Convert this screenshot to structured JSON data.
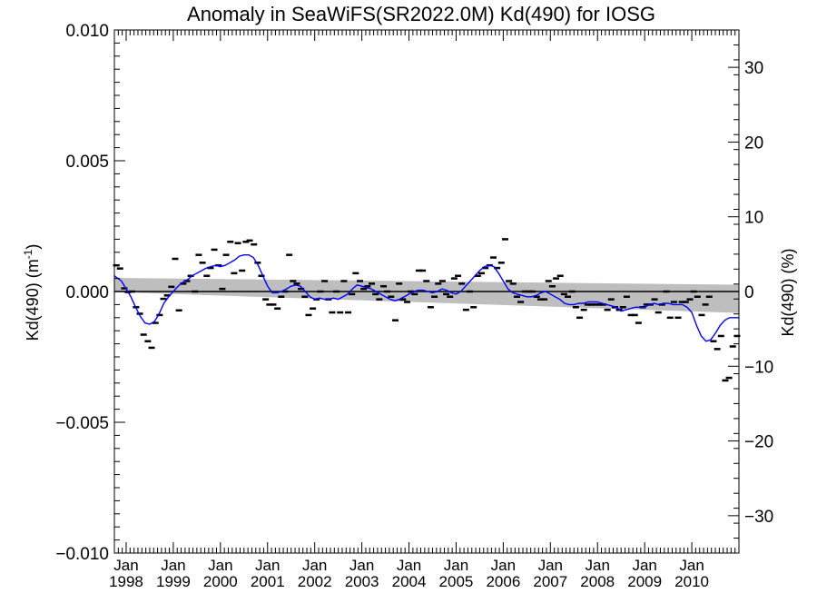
{
  "chart_data": {
    "type": "line",
    "title": "Anomaly in SeaWiFS(SR2022.0M) Kd(490) for IOSG",
    "ylabel_left_main": "Kd(490) (m",
    "ylabel_left_exp": "-1",
    "ylabel_left_close": ")",
    "ylabel_right": "Kd(490) (%)",
    "xlim": [
      1997.75,
      2011.0
    ],
    "ylim": [
      -0.01,
      0.01
    ],
    "ylim_right": [
      -35,
      35
    ],
    "y_ticks": [
      "0.010",
      "0.005",
      "0.000",
      "−0.005",
      "−0.010"
    ],
    "y_tick_values": [
      0.01,
      0.005,
      0.0,
      -0.005,
      -0.01
    ],
    "y_ticks_right": [
      "30",
      "20",
      "10",
      "0",
      "−10",
      "−20",
      "−30"
    ],
    "y_tick_values_right": [
      30,
      20,
      10,
      0,
      -10,
      -20,
      -30
    ],
    "x_month_label": "Jan",
    "x_years": [
      "1998",
      "1999",
      "2000",
      "2001",
      "2002",
      "2003",
      "2004",
      "2005",
      "2006",
      "2007",
      "2008",
      "2009",
      "2010"
    ],
    "x_year_values": [
      1998.0,
      1999.0,
      2000.0,
      2001.0,
      2002.0,
      2003.0,
      2004.0,
      2005.0,
      2006.0,
      2007.0,
      2008.0,
      2009.0,
      2010.0
    ],
    "zero_line": 0.0,
    "trend_band": {
      "x": [
        1997.75,
        2011.0
      ],
      "upper": [
        0.00052,
        0.00026
      ],
      "lower": [
        -2e-05,
        -0.00082
      ]
    },
    "colors": {
      "smoothed": "#0000ff",
      "monthly": "#000000",
      "band": "#bebebe",
      "zero_line": "#000000"
    },
    "monthly_points": [
      [
        1997.79,
        0.001
      ],
      [
        1997.87,
        0.00088
      ],
      [
        1997.96,
        0.00012
      ],
      [
        1998.04,
        -2e-05
      ],
      [
        1998.12,
        0.0
      ],
      [
        1998.21,
        -0.0006
      ],
      [
        1998.29,
        -0.00085
      ],
      [
        1998.37,
        -0.00165
      ],
      [
        1998.46,
        -0.0019
      ],
      [
        1998.54,
        -0.00215
      ],
      [
        1998.62,
        -0.0012
      ],
      [
        1998.71,
        -0.0009
      ],
      [
        1998.79,
        -0.00028
      ],
      [
        1998.87,
        -0.00015
      ],
      [
        1998.96,
        0.00018
      ],
      [
        1999.04,
        0.00125
      ],
      [
        1999.12,
        -0.00072
      ],
      [
        1999.21,
        0.0003
      ],
      [
        1999.29,
        0.0004
      ],
      [
        1999.37,
        0.0006
      ],
      [
        1999.46,
        0.0
      ],
      [
        1999.54,
        0.0014
      ],
      [
        1999.62,
        0.0011
      ],
      [
        1999.71,
        0.0006
      ],
      [
        1999.79,
        0.0009
      ],
      [
        1999.87,
        0.0016
      ],
      [
        1999.96,
        0.001
      ],
      [
        2000.04,
        0.0001
      ],
      [
        2000.12,
        0.0014
      ],
      [
        2000.21,
        0.0019
      ],
      [
        2000.29,
        0.0007
      ],
      [
        2000.37,
        0.00185
      ],
      [
        2000.46,
        0.0008
      ],
      [
        2000.54,
        0.0019
      ],
      [
        2000.62,
        0.00195
      ],
      [
        2000.71,
        0.0018
      ],
      [
        2000.79,
        0.0011
      ],
      [
        2000.87,
        0.0006
      ],
      [
        2000.96,
        -0.0003
      ],
      [
        2001.04,
        -0.0005
      ],
      [
        2001.12,
        -0.0005
      ],
      [
        2001.21,
        -0.00065
      ],
      [
        2001.29,
        -0.0002
      ],
      [
        2001.37,
        0.0
      ],
      [
        2001.46,
        0.0014
      ],
      [
        2001.54,
        0.0004
      ],
      [
        2001.62,
        0.0003
      ],
      [
        2001.71,
        0.0001
      ],
      [
        2001.79,
        -0.0002
      ],
      [
        2001.87,
        -0.0009
      ],
      [
        2001.96,
        -0.00065
      ],
      [
        2002.04,
        -0.0003
      ],
      [
        2002.12,
        0.0
      ],
      [
        2002.21,
        0.0004
      ],
      [
        2002.29,
        -0.0003
      ],
      [
        2002.37,
        -0.0008
      ],
      [
        2002.46,
        0.0
      ],
      [
        2002.54,
        -0.0008
      ],
      [
        2002.62,
        0.0004
      ],
      [
        2002.71,
        -0.0008
      ],
      [
        2002.79,
        -0.0001
      ],
      [
        2002.87,
        0.0007
      ],
      [
        2002.96,
        0.0004
      ],
      [
        2003.04,
        0.0001
      ],
      [
        2003.12,
        0.0002
      ],
      [
        2003.21,
        0.0003
      ],
      [
        2003.29,
        -0.0001
      ],
      [
        2003.37,
        -0.0003
      ],
      [
        2003.46,
        0.0002
      ],
      [
        2003.54,
        0.0
      ],
      [
        2003.62,
        -0.0002
      ],
      [
        2003.71,
        -0.0011
      ],
      [
        2003.79,
        0.0003
      ],
      [
        2003.87,
        -0.0003
      ],
      [
        2003.96,
        -0.0004
      ],
      [
        2004.04,
        0.0
      ],
      [
        2004.12,
        -0.0001
      ],
      [
        2004.21,
        0.0008
      ],
      [
        2004.29,
        0.0008
      ],
      [
        2004.37,
        0.0004
      ],
      [
        2004.46,
        -0.0006
      ],
      [
        2004.54,
        -0.0002
      ],
      [
        2004.62,
        0.0003
      ],
      [
        2004.71,
        0.0004
      ],
      [
        2004.79,
        -0.0001
      ],
      [
        2004.87,
        -0.0002
      ],
      [
        2004.96,
        0.0005
      ],
      [
        2005.04,
        0.0006
      ],
      [
        2005.12,
        0.0003
      ],
      [
        2005.21,
        -0.0007
      ],
      [
        2005.29,
        0.0
      ],
      [
        2005.37,
        -0.0006
      ],
      [
        2005.46,
        0.0006
      ],
      [
        2005.54,
        0.0007
      ],
      [
        2005.62,
        0.0009
      ],
      [
        2005.71,
        0.001
      ],
      [
        2005.79,
        0.0013
      ],
      [
        2005.87,
        0.0009
      ],
      [
        2005.96,
        0.0011
      ],
      [
        2006.04,
        0.002
      ],
      [
        2006.12,
        0.0004
      ],
      [
        2006.21,
        0.0003
      ],
      [
        2006.29,
        -0.0002
      ],
      [
        2006.37,
        -0.0004
      ],
      [
        2006.46,
        0.0
      ],
      [
        2006.54,
        0.0
      ],
      [
        2006.62,
        0.0
      ],
      [
        2006.71,
        -0.0002
      ],
      [
        2006.79,
        -0.0003
      ],
      [
        2006.87,
        -0.0003
      ],
      [
        2006.96,
        0.0004
      ],
      [
        2007.04,
        0.0002
      ],
      [
        2007.12,
        0.0005
      ],
      [
        2007.21,
        0.0006
      ],
      [
        2007.29,
        -0.0001
      ],
      [
        2007.37,
        -0.0002
      ],
      [
        2007.46,
        0.0
      ],
      [
        2007.54,
        -0.0006
      ],
      [
        2007.62,
        -0.001
      ],
      [
        2007.71,
        -0.0007
      ],
      [
        2007.79,
        -0.0005
      ],
      [
        2007.87,
        -0.0005
      ],
      [
        2007.96,
        -0.0005
      ],
      [
        2008.04,
        -0.0005
      ],
      [
        2008.12,
        -0.0005
      ],
      [
        2008.21,
        -0.0007
      ],
      [
        2008.29,
        -0.0003
      ],
      [
        2008.37,
        -0.0006
      ],
      [
        2008.46,
        -0.0007
      ],
      [
        2008.54,
        -0.0006
      ],
      [
        2008.62,
        -0.0002
      ],
      [
        2008.71,
        -0.0009
      ],
      [
        2008.79,
        -0.0009
      ],
      [
        2008.87,
        -0.0012
      ],
      [
        2008.96,
        -0.0006
      ],
      [
        2009.04,
        -0.0005
      ],
      [
        2009.12,
        -0.0005
      ],
      [
        2009.21,
        -0.0003
      ],
      [
        2009.29,
        -0.0008
      ],
      [
        2009.37,
        -0.0005
      ],
      [
        2009.46,
        0.0
      ],
      [
        2009.54,
        -0.001
      ],
      [
        2009.62,
        -0.0004
      ],
      [
        2009.71,
        -0.001
      ],
      [
        2009.79,
        -0.0004
      ],
      [
        2009.87,
        -0.0004
      ],
      [
        2009.96,
        -0.0003
      ],
      [
        2010.04,
        0.0
      ],
      [
        2010.12,
        -0.0002
      ],
      [
        2010.21,
        -0.0009
      ],
      [
        2010.29,
        -0.0005
      ],
      [
        2010.37,
        -0.0002
      ],
      [
        2010.46,
        -0.0019
      ],
      [
        2010.54,
        -0.0022
      ],
      [
        2010.62,
        -0.0017
      ],
      [
        2010.71,
        -0.0034
      ],
      [
        2010.79,
        -0.0033
      ],
      [
        2010.87,
        -0.0021
      ],
      [
        2010.96,
        -0.0017
      ]
    ],
    "smoothed_line": {
      "x": [
        1997.75,
        1997.9,
        1998.0,
        1998.1,
        1998.2,
        1998.3,
        1998.4,
        1998.5,
        1998.6,
        1998.7,
        1998.8,
        1998.9,
        1999.0,
        1999.1,
        1999.2,
        1999.3,
        1999.4,
        1999.5,
        1999.6,
        1999.7,
        1999.8,
        1999.9,
        2000.0,
        2000.1,
        2000.2,
        2000.3,
        2000.4,
        2000.5,
        2000.6,
        2000.7,
        2000.8,
        2000.9,
        2001.0,
        2001.1,
        2001.2,
        2001.3,
        2001.4,
        2001.5,
        2001.6,
        2001.7,
        2001.8,
        2001.9,
        2002.0,
        2002.1,
        2002.2,
        2002.3,
        2002.4,
        2002.5,
        2002.6,
        2002.7,
        2002.8,
        2002.9,
        2003.0,
        2003.1,
        2003.2,
        2003.3,
        2003.4,
        2003.5,
        2003.6,
        2003.7,
        2003.8,
        2003.9,
        2004.0,
        2004.1,
        2004.2,
        2004.3,
        2004.4,
        2004.5,
        2004.6,
        2004.7,
        2004.8,
        2004.9,
        2005.0,
        2005.1,
        2005.2,
        2005.3,
        2005.4,
        2005.5,
        2005.6,
        2005.7,
        2005.8,
        2005.9,
        2006.0,
        2006.1,
        2006.2,
        2006.3,
        2006.4,
        2006.5,
        2006.6,
        2006.7,
        2006.8,
        2006.9,
        2007.0,
        2007.1,
        2007.2,
        2007.3,
        2007.4,
        2007.5,
        2007.6,
        2007.7,
        2007.8,
        2007.9,
        2008.0,
        2008.1,
        2008.2,
        2008.3,
        2008.4,
        2008.5,
        2008.6,
        2008.7,
        2008.8,
        2008.9,
        2009.0,
        2009.1,
        2009.2,
        2009.3,
        2009.4,
        2009.5,
        2009.6,
        2009.7,
        2009.8,
        2009.9,
        2010.0,
        2010.1,
        2010.2,
        2010.3,
        2010.4,
        2010.5,
        2010.6,
        2010.7,
        2010.8,
        2010.9,
        2011.0
      ],
      "y": [
        0.0006,
        0.0004,
        0.0001,
        -0.0002,
        -0.0006,
        -0.00095,
        -0.0012,
        -0.00125,
        -0.00115,
        -0.00085,
        -0.00045,
        -0.0002,
        0.0,
        0.0002,
        0.00035,
        0.00045,
        0.0006,
        0.0007,
        0.0008,
        0.0009,
        0.00095,
        0.001,
        0.00095,
        0.001,
        0.0011,
        0.0012,
        0.00135,
        0.0014,
        0.0014,
        0.0013,
        0.001,
        0.0006,
        0.0002,
        -5e-05,
        -5e-05,
        0.0,
        0.0001,
        0.0002,
        0.00025,
        0.0002,
        0.0,
        -0.0002,
        -0.0003,
        -0.00025,
        -0.0003,
        -0.0003,
        -0.00025,
        -0.0003,
        -0.0002,
        -0.0001,
        0.0001,
        0.00025,
        0.0002,
        0.00015,
        0.0001,
        0.0,
        -0.0001,
        -0.0002,
        -0.0003,
        -0.00035,
        -0.0003,
        -0.0002,
        -0.0001,
        0.0,
        5e-05,
        5e-05,
        0.0,
        -5e-05,
        0.0,
        0.0001,
        5e-05,
        -5e-05,
        -0.0001,
        0.0,
        0.0002,
        0.0004,
        0.0006,
        0.0008,
        0.00095,
        0.001,
        0.00095,
        0.0007,
        0.0004,
        0.0001,
        -5e-05,
        -0.0001,
        -0.00015,
        -0.0002,
        -0.0002,
        -0.00015,
        -5e-05,
        0.0,
        -0.0001,
        -0.0002,
        -0.0003,
        -0.00045,
        -0.0005,
        -0.0005,
        -0.00045,
        -0.00045,
        -0.0004,
        -0.0004,
        -0.0004,
        -0.00045,
        -0.0005,
        -0.00055,
        -0.0006,
        -0.00075,
        -0.0007,
        -0.00065,
        -0.0006,
        -0.0006,
        -0.0006,
        -0.0005,
        -0.00045,
        -0.0005,
        -0.00045,
        -0.00045,
        -0.0005,
        -0.0005,
        -0.0005,
        -0.0006,
        -0.0008,
        -0.0013,
        -0.0017,
        -0.0019,
        -0.00185,
        -0.0016,
        -0.0013,
        -0.0011,
        -0.001,
        -0.001,
        -0.001
      ]
    }
  }
}
